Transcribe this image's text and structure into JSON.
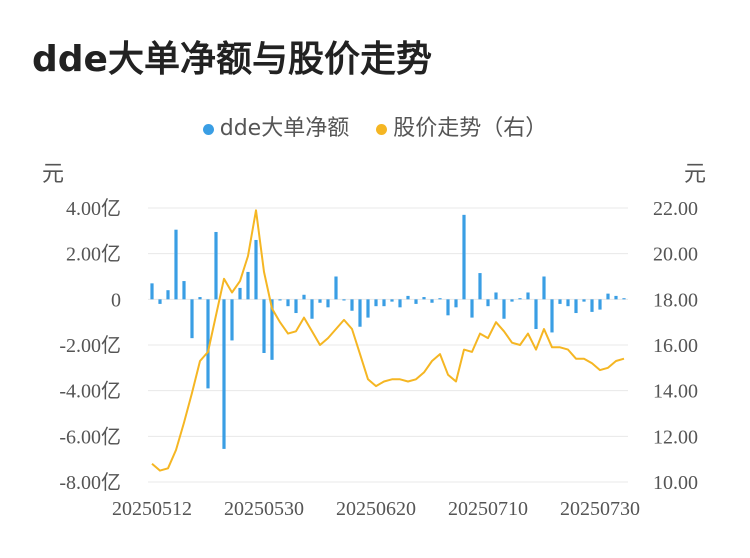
{
  "title": "dde大单净额与股价走势",
  "legend": [
    {
      "label": "dde大单净额",
      "color": "#3a9ee4"
    },
    {
      "label": "股价走势（右）",
      "color": "#f5b623"
    }
  ],
  "left_unit": "元",
  "right_unit": "元",
  "chart_data": {
    "type": "bar+line",
    "y_left": {
      "min": -8,
      "max": 4,
      "ticks": [
        {
          "v": 4,
          "label": "4.00亿"
        },
        {
          "v": 2,
          "label": "2.00亿"
        },
        {
          "v": 0,
          "label": "0"
        },
        {
          "v": -2,
          "label": "-2.00亿"
        },
        {
          "v": -4,
          "label": "-4.00亿"
        },
        {
          "v": -6,
          "label": "-6.00亿"
        },
        {
          "v": -8,
          "label": "-8.00亿"
        }
      ]
    },
    "y_right": {
      "min": 10,
      "max": 22,
      "ticks": [
        {
          "v": 22,
          "label": "22.00"
        },
        {
          "v": 20,
          "label": "20.00"
        },
        {
          "v": 18,
          "label": "18.00"
        },
        {
          "v": 16,
          "label": "16.00"
        },
        {
          "v": 14,
          "label": "14.00"
        },
        {
          "v": 12,
          "label": "12.00"
        },
        {
          "v": 10,
          "label": "10.00"
        }
      ]
    },
    "x_ticks": [
      {
        "index": 0,
        "label": "20250512"
      },
      {
        "index": 14,
        "label": "20250530"
      },
      {
        "index": 28,
        "label": "20250620"
      },
      {
        "index": 42,
        "label": "20250710"
      },
      {
        "index": 56,
        "label": "20250730"
      }
    ],
    "series": [
      {
        "name": "dde大单净额",
        "unit": "亿",
        "values": [
          0.7,
          -0.2,
          0.4,
          3.05,
          0.8,
          -1.7,
          0.1,
          -3.9,
          2.95,
          -6.55,
          -1.8,
          0.5,
          1.2,
          2.6,
          -2.35,
          -2.65,
          -0.05,
          -0.3,
          -0.6,
          0.2,
          -0.85,
          -0.15,
          -0.35,
          1.0,
          -0.05,
          -0.5,
          -1.2,
          -0.8,
          -0.3,
          -0.3,
          -0.1,
          -0.35,
          0.15,
          -0.2,
          0.1,
          -0.15,
          0.05,
          -0.7,
          -0.35,
          3.7,
          -0.8,
          1.15,
          -0.3,
          0.3,
          -0.85,
          -0.1,
          0.05,
          0.3,
          -1.3,
          1.0,
          -1.45,
          -0.2,
          -0.3,
          -0.6,
          -0.1,
          -0.55,
          -0.45,
          0.25,
          0.15,
          0.05
        ]
      },
      {
        "name": "股价走势（右）",
        "values": [
          10.8,
          10.5,
          10.6,
          11.4,
          12.6,
          13.9,
          15.3,
          15.7,
          17.3,
          18.9,
          18.3,
          18.8,
          19.9,
          21.9,
          19.2,
          17.6,
          17.0,
          16.5,
          16.6,
          17.2,
          16.6,
          16.0,
          16.3,
          16.7,
          17.1,
          16.7,
          15.6,
          14.5,
          14.2,
          14.4,
          14.5,
          14.5,
          14.4,
          14.5,
          14.8,
          15.3,
          15.6,
          14.7,
          14.4,
          15.8,
          15.7,
          16.5,
          16.3,
          17.0,
          16.6,
          16.1,
          16.0,
          16.5,
          15.8,
          16.7,
          15.9,
          15.9,
          15.8,
          15.4,
          15.4,
          15.2,
          14.9,
          15.0,
          15.3,
          15.4
        ]
      }
    ],
    "grid": true,
    "legend_position": "top-center"
  }
}
